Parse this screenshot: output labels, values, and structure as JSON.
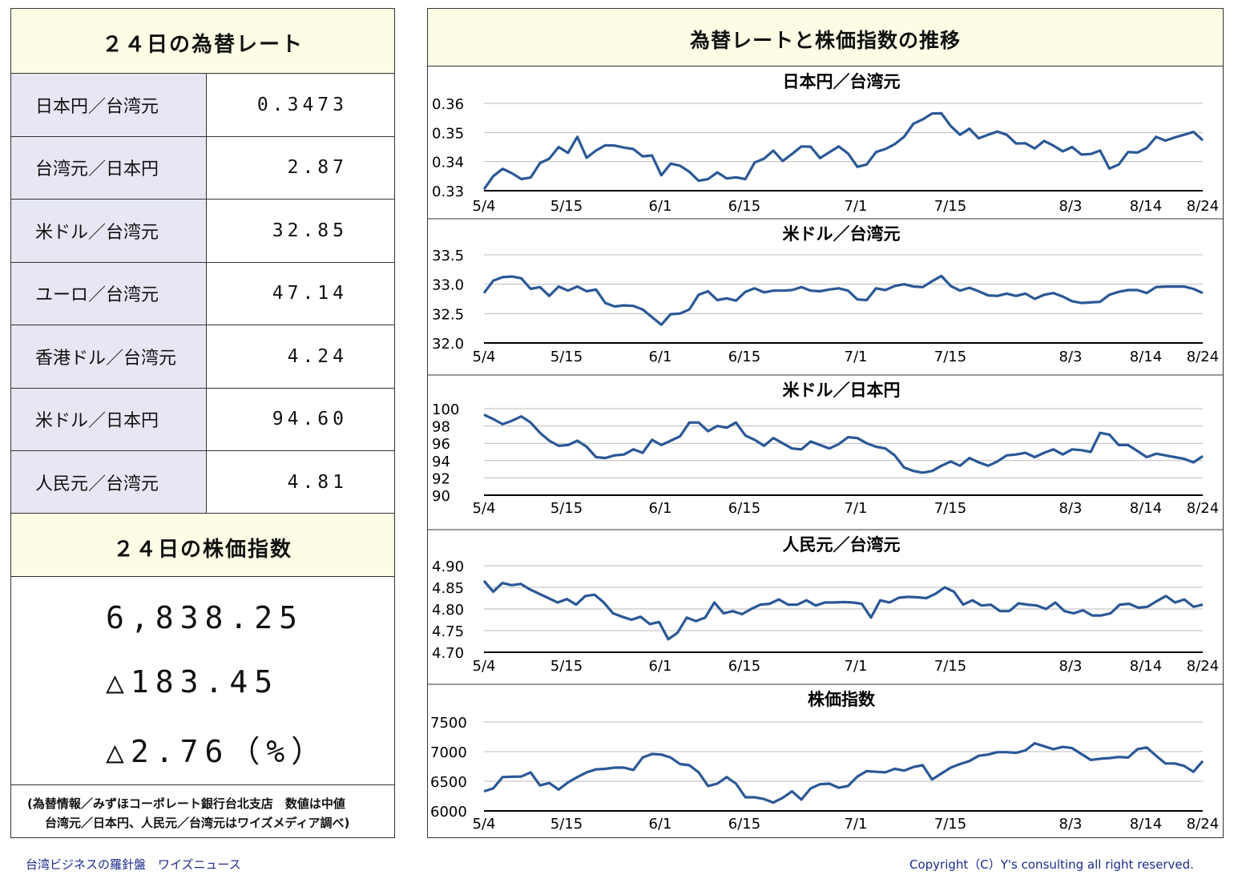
{
  "left": {
    "fx_title": "２４日の為替レート",
    "rates": [
      {
        "label": "日本円／台湾元",
        "value": "0.3473"
      },
      {
        "label": "台湾元／日本円",
        "value": "2.87"
      },
      {
        "label": "米ドル／台湾元",
        "value": "32.85"
      },
      {
        "label": "ユーロ／台湾元",
        "value": "47.14"
      },
      {
        "label": "香港ドル／台湾元",
        "value": "4.24"
      },
      {
        "label": "米ドル／日本円",
        "value": "94.60"
      },
      {
        "label": "人民元／台湾元",
        "value": "4.81"
      }
    ],
    "stock_title": "２４日の株価指数",
    "stock_value": "6,838.25",
    "stock_change": "△183.45",
    "stock_change_pct": "△2.76（%）",
    "note_line1": "(為替情報／みずほコーポレート銀行台北支店　数値は中値",
    "note_line2": "台湾元／日本円、人民元／台湾元はワイズメディア調べ)"
  },
  "right": {
    "main_title": "為替レートと株価指数の推移"
  },
  "footer": {
    "left": "台湾ビジネスの羅針盤　ワイズニュース",
    "right": "Copyright（C）Y's consulting all right reserved."
  },
  "colors": {
    "line": "#2a5896",
    "label_bg": "#e6e7f2",
    "title_bg": "#fdfde6"
  },
  "chart_data": [
    {
      "type": "line",
      "title": "日本円／台湾元",
      "x_ticks": [
        "5/4",
        "5/15",
        "6/1",
        "6/15",
        "7/1",
        "7/15",
        "8/3",
        "8/14",
        "8/24"
      ],
      "y_ticks": [
        "0.33",
        "0.34",
        "0.35",
        "0.36"
      ],
      "ylim": [
        0.33,
        0.36
      ],
      "values": [
        0.3305,
        0.335,
        0.3375,
        0.336,
        0.334,
        0.3345,
        0.3395,
        0.341,
        0.345,
        0.343,
        0.3485,
        0.3413,
        0.3438,
        0.3456,
        0.3455,
        0.3448,
        0.3443,
        0.3418,
        0.3421,
        0.3353,
        0.3393,
        0.3386,
        0.3365,
        0.3334,
        0.334,
        0.3363,
        0.3342,
        0.3346,
        0.334,
        0.3397,
        0.341,
        0.3438,
        0.3402,
        0.3426,
        0.3452,
        0.3451,
        0.3412,
        0.3432,
        0.3452,
        0.3428,
        0.3382,
        0.339,
        0.3433,
        0.3443,
        0.346,
        0.3485,
        0.353,
        0.3545,
        0.3565,
        0.3566,
        0.3522,
        0.3492,
        0.3513,
        0.348,
        0.3492,
        0.3503,
        0.3492,
        0.3462,
        0.3463,
        0.3445,
        0.3471,
        0.3455,
        0.3435,
        0.345,
        0.3424,
        0.3426,
        0.3438,
        0.3376,
        0.339,
        0.3433,
        0.3431,
        0.3447,
        0.3485,
        0.3472,
        0.3483,
        0.3492,
        0.3502,
        0.3473
      ]
    },
    {
      "type": "line",
      "title": "米ドル／台湾元",
      "x_ticks": [
        "5/4",
        "5/15",
        "6/1",
        "6/15",
        "7/1",
        "7/15",
        "8/3",
        "8/14",
        "8/24"
      ],
      "y_ticks": [
        "32.0",
        "32.5",
        "33.0",
        "33.5"
      ],
      "ylim": [
        32.0,
        33.5
      ],
      "values": [
        32.85,
        33.06,
        33.12,
        33.13,
        33.1,
        32.92,
        32.95,
        32.8,
        32.96,
        32.89,
        32.96,
        32.88,
        32.91,
        32.68,
        32.62,
        32.64,
        32.63,
        32.57,
        32.44,
        32.31,
        32.49,
        32.5,
        32.57,
        32.82,
        32.88,
        32.73,
        32.76,
        32.72,
        32.87,
        32.93,
        32.86,
        32.89,
        32.89,
        32.9,
        32.95,
        32.89,
        32.88,
        32.91,
        32.93,
        32.89,
        32.74,
        32.73,
        32.93,
        32.9,
        32.97,
        33.0,
        32.96,
        32.95,
        33.05,
        33.14,
        32.97,
        32.89,
        32.94,
        32.88,
        32.81,
        32.8,
        32.84,
        32.8,
        32.84,
        32.75,
        32.82,
        32.85,
        32.79,
        32.71,
        32.68,
        32.69,
        32.7,
        32.82,
        32.87,
        32.9,
        32.9,
        32.85,
        32.95,
        32.96,
        32.96,
        32.96,
        32.92,
        32.85
      ]
    },
    {
      "type": "line",
      "title": "米ドル／日本円",
      "x_ticks": [
        "5/4",
        "5/15",
        "6/1",
        "6/15",
        "7/1",
        "7/15",
        "8/3",
        "8/14",
        "8/24"
      ],
      "y_ticks": [
        "90",
        "92",
        "94",
        "96",
        "98",
        "100"
      ],
      "ylim": [
        90,
        100
      ],
      "values": [
        99.3,
        98.8,
        98.2,
        98.6,
        99.1,
        98.4,
        97.2,
        96.3,
        95.7,
        95.8,
        96.3,
        95.6,
        94.4,
        94.3,
        94.6,
        94.7,
        95.3,
        94.9,
        96.4,
        95.8,
        96.3,
        96.8,
        98.4,
        98.4,
        97.4,
        98.0,
        97.8,
        98.4,
        96.9,
        96.4,
        95.7,
        96.6,
        96.0,
        95.4,
        95.3,
        96.2,
        95.8,
        95.4,
        95.9,
        96.7,
        96.6,
        96.0,
        95.6,
        95.4,
        94.6,
        93.2,
        92.8,
        92.6,
        92.8,
        93.4,
        93.9,
        93.4,
        94.3,
        93.8,
        93.4,
        93.9,
        94.6,
        94.7,
        94.9,
        94.4,
        94.9,
        95.3,
        94.7,
        95.3,
        95.2,
        95.0,
        97.2,
        97.0,
        95.8,
        95.8,
        95.1,
        94.4,
        94.8,
        94.6,
        94.4,
        94.2,
        93.8,
        94.5
      ]
    },
    {
      "type": "line",
      "title": "人民元／台湾元",
      "x_ticks": [
        "5/4",
        "5/15",
        "6/1",
        "6/15",
        "7/1",
        "7/15",
        "8/3",
        "8/14",
        "8/24"
      ],
      "y_ticks": [
        "4.70",
        "4.75",
        "4.80",
        "4.85",
        "4.90"
      ],
      "ylim": [
        4.7,
        4.9
      ],
      "values": [
        4.865,
        4.84,
        4.86,
        4.855,
        4.858,
        4.845,
        4.835,
        4.825,
        4.815,
        4.823,
        4.81,
        4.83,
        4.833,
        4.815,
        4.79,
        4.782,
        4.775,
        4.782,
        4.765,
        4.77,
        4.73,
        4.745,
        4.78,
        4.772,
        4.78,
        4.815,
        4.79,
        4.795,
        4.788,
        4.8,
        4.81,
        4.812,
        4.822,
        4.81,
        4.81,
        4.82,
        4.808,
        4.815,
        4.815,
        4.816,
        4.815,
        4.812,
        4.78,
        4.82,
        4.815,
        4.826,
        4.828,
        4.827,
        4.825,
        4.835,
        4.85,
        4.84,
        4.81,
        4.82,
        4.808,
        4.81,
        4.795,
        4.795,
        4.813,
        4.81,
        4.808,
        4.8,
        4.815,
        4.795,
        4.79,
        4.797,
        4.785,
        4.785,
        4.79,
        4.81,
        4.812,
        4.803,
        4.805,
        4.818,
        4.83,
        4.815,
        4.822,
        4.805,
        4.81
      ]
    },
    {
      "type": "line",
      "title": "株価指数",
      "x_ticks": [
        "5/4",
        "5/15",
        "6/1",
        "6/15",
        "7/1",
        "7/15",
        "8/3",
        "8/14",
        "8/24"
      ],
      "y_ticks": [
        "6000",
        "6500",
        "7000",
        "7500"
      ],
      "ylim": [
        6000,
        7500
      ],
      "values": [
        6330,
        6380,
        6570,
        6575,
        6580,
        6650,
        6430,
        6470,
        6360,
        6480,
        6570,
        6650,
        6700,
        6710,
        6730,
        6730,
        6690,
        6900,
        6960,
        6950,
        6900,
        6790,
        6770,
        6650,
        6420,
        6460,
        6570,
        6460,
        6230,
        6230,
        6200,
        6140,
        6220,
        6330,
        6190,
        6380,
        6450,
        6460,
        6390,
        6420,
        6580,
        6670,
        6660,
        6650,
        6710,
        6680,
        6740,
        6770,
        6530,
        6630,
        6730,
        6790,
        6840,
        6930,
        6950,
        6990,
        6990,
        6980,
        7020,
        7140,
        7090,
        7040,
        7080,
        7060,
        6960,
        6860,
        6880,
        6890,
        6910,
        6900,
        7040,
        7070,
        6930,
        6800,
        6800,
        6760,
        6660,
        6840
      ]
    }
  ]
}
